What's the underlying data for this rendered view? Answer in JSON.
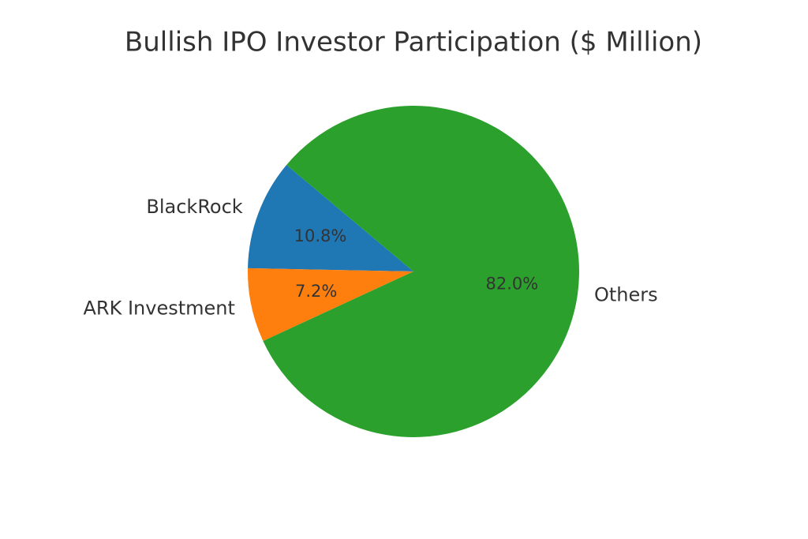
{
  "chart_data": {
    "type": "pie",
    "title": "Bullish IPO Investor Participation ($ Million)",
    "categories": [
      "BlackRock",
      "ARK Investment",
      "Others"
    ],
    "values": [
      10.8,
      7.2,
      82.0
    ],
    "value_labels": [
      "10.8%",
      "7.2%",
      "82.0%"
    ],
    "colors": [
      "#1f77b4",
      "#ff7f0e",
      "#2ca02c"
    ]
  }
}
